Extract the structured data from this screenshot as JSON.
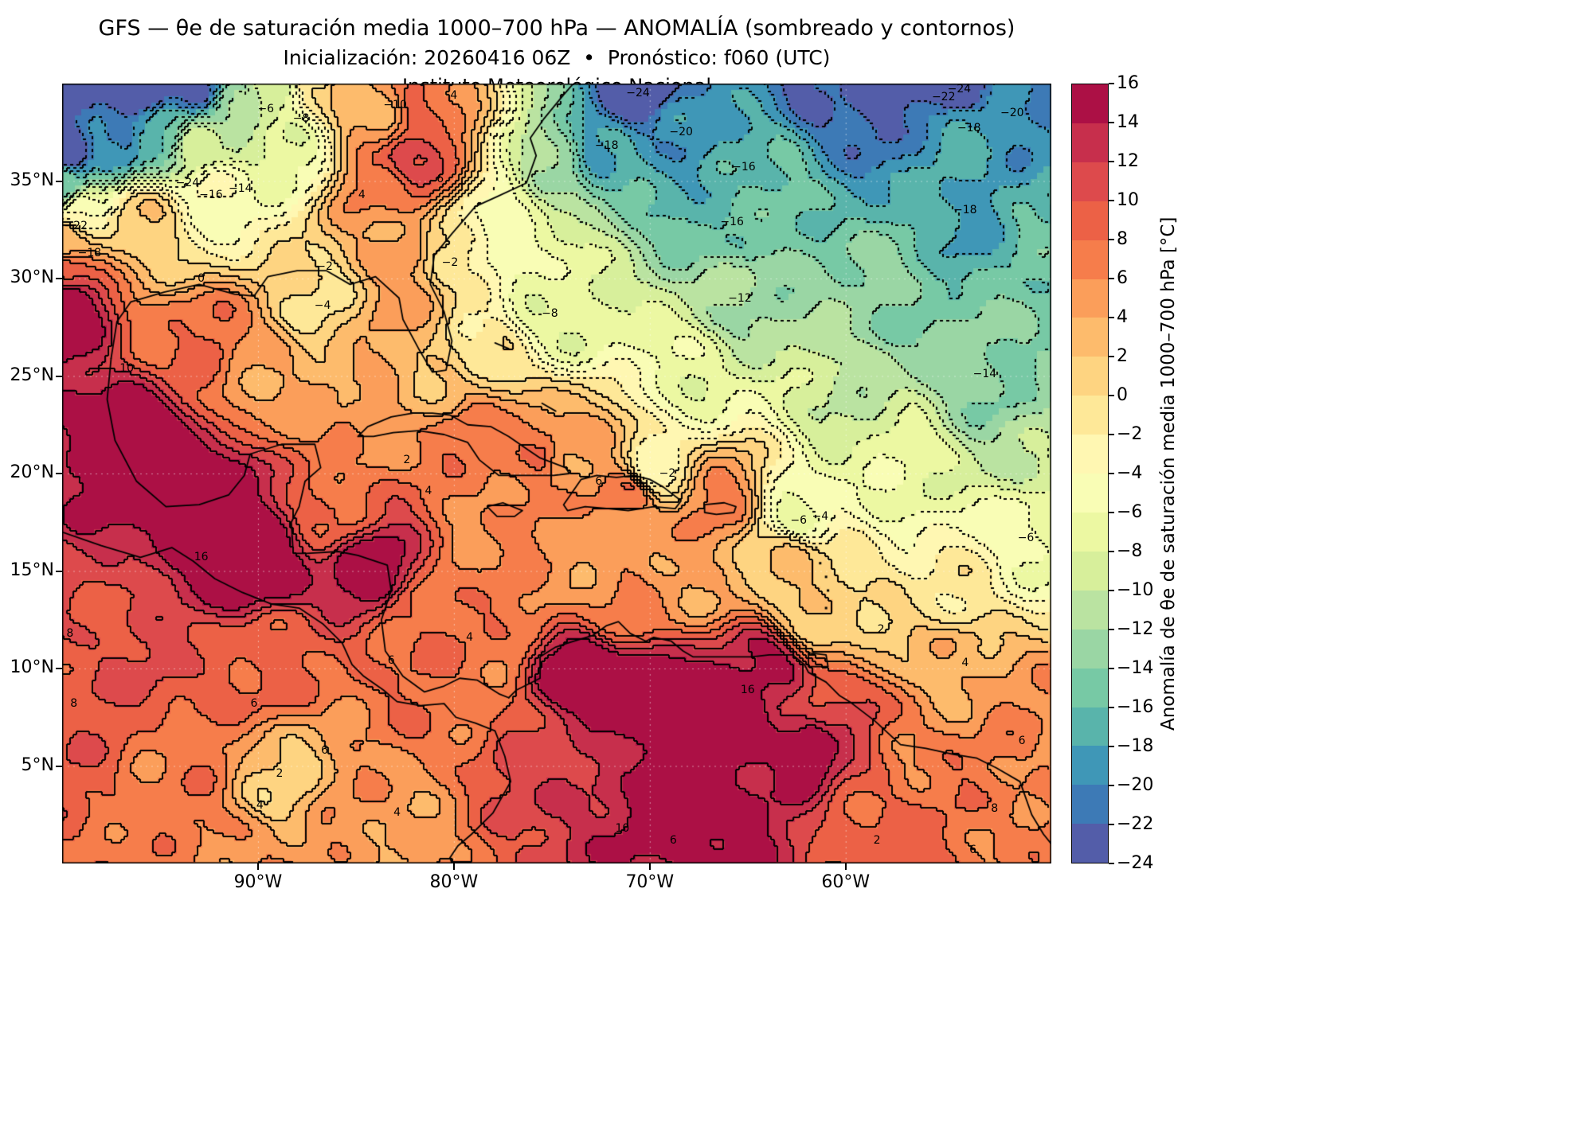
{
  "title": {
    "line1": "GFS — θe de saturación media 1000–700 hPa — ANOMALÍA (sombreado y contornos)",
    "line2": "Inicialización: 20260416 06Z  •  Pronóstico: f060 (UTC)",
    "line3": "Instituto Meteorológico Nacional"
  },
  "axes": {
    "lat_tick_labels": [
      "35°N",
      "30°N",
      "25°N",
      "20°N",
      "15°N",
      "10°N",
      "5°N"
    ],
    "lat_tick_values": [
      35,
      30,
      25,
      20,
      15,
      10,
      5
    ],
    "lon_tick_labels": [
      "90°W",
      "80°W",
      "70°W",
      "60°W"
    ],
    "lon_tick_values": [
      -90,
      -80,
      -70,
      -60
    ]
  },
  "colorbar": {
    "label": "Anomalía de θe de saturación media 1000–700 hPa [°C]",
    "tick_labels": [
      "16",
      "14",
      "12",
      "10",
      "8",
      "6",
      "4",
      "2",
      "0",
      "−2",
      "−4",
      "−6",
      "−8",
      "−10",
      "−12",
      "−14",
      "−16",
      "−18",
      "−20",
      "−22",
      "−24"
    ],
    "tick_values": [
      16,
      14,
      12,
      10,
      8,
      6,
      4,
      2,
      0,
      -2,
      -4,
      -6,
      -8,
      -10,
      -12,
      -14,
      -16,
      -18,
      -20,
      -22,
      -24
    ],
    "colors": [
      "#535da9",
      "#3d7ab6",
      "#3f97b7",
      "#59b4ab",
      "#77c9a5",
      "#9ad6a4",
      "#bae3a1",
      "#d7ef9b",
      "#ecf8a2",
      "#f9fdb5",
      "#fff7b2",
      "#fee898",
      "#fed481",
      "#fdbb6c",
      "#fb9e5a",
      "#f67d4b",
      "#ec6146",
      "#dd4a4c",
      "#c72f4c",
      "#ac1045"
    ]
  },
  "chart_data": {
    "type": "heatmap",
    "variable": "Anomalía de θe de saturación media 1000–700 hPa",
    "units": "°C",
    "model": "GFS",
    "init": "20260416 06Z",
    "forecast_hour": "f060 (UTC)",
    "level_min": -24,
    "level_max": 16,
    "contour_interval": 2,
    "negative_contour_style": "dotted",
    "positive_contour_style": "solid",
    "extent": {
      "lon_min": -100,
      "lon_max": -49.5,
      "lat_min": 0,
      "lat_max": 40
    },
    "field_control_points": [
      {
        "lon": -100,
        "lat": 40,
        "val": -27
      },
      {
        "lon": -96,
        "lat": 40,
        "val": -26
      },
      {
        "lon": -100,
        "lat": 36.5,
        "val": -25
      },
      {
        "lon": -93,
        "lat": 40,
        "val": -22
      },
      {
        "lon": -97.5,
        "lat": 37,
        "val": -20
      },
      {
        "lon": -95,
        "lat": 37.5,
        "val": -16
      },
      {
        "lon": -100,
        "lat": 34.8,
        "val": -15
      },
      {
        "lon": -91,
        "lat": 39,
        "val": -13
      },
      {
        "lon": -93,
        "lat": 36.7,
        "val": -10
      },
      {
        "lon": -89,
        "lat": 40,
        "val": -8
      },
      {
        "lon": -88.5,
        "lat": 36.5,
        "val": -7
      },
      {
        "lon": -92,
        "lat": 34.5,
        "val": -4
      },
      {
        "lon": -99,
        "lat": 33.5,
        "val": -4
      },
      {
        "lon": -87,
        "lat": 40,
        "val": 0
      },
      {
        "lon": -96,
        "lat": 33,
        "val": 1
      },
      {
        "lon": -85.5,
        "lat": 40,
        "val": 4
      },
      {
        "lon": -100,
        "lat": 32,
        "val": 4
      },
      {
        "lon": -84,
        "lat": 38.5,
        "val": 3
      },
      {
        "lon": -100,
        "lat": 30.5,
        "val": 10
      },
      {
        "lon": -100,
        "lat": 28.5,
        "val": 16
      },
      {
        "lon": -82,
        "lat": 36,
        "val": 12
      },
      {
        "lon": -81.5,
        "lat": 38.5,
        "val": 8
      },
      {
        "lon": -83.5,
        "lat": 34.5,
        "val": 7
      },
      {
        "lon": -83,
        "lat": 31.5,
        "val": 5
      },
      {
        "lon": -82.5,
        "lat": 28.8,
        "val": 4
      },
      {
        "lon": -80,
        "lat": 31.5,
        "val": -2
      },
      {
        "lon": -77.5,
        "lat": 33.5,
        "val": -5
      },
      {
        "lon": -75,
        "lat": 28.2,
        "val": -8
      },
      {
        "lon": -78.5,
        "lat": 26,
        "val": -1
      },
      {
        "lon": -75,
        "lat": 36,
        "val": -12
      },
      {
        "lon": -72.3,
        "lat": 36.8,
        "val": -18
      },
      {
        "lon": -70.6,
        "lat": 39.5,
        "val": -24
      },
      {
        "lon": -68.4,
        "lat": 37.6,
        "val": -20
      },
      {
        "lon": -65.2,
        "lat": 35.7,
        "val": -16
      },
      {
        "lon": -60,
        "lat": 39.5,
        "val": -23
      },
      {
        "lon": -54,
        "lat": 39.7,
        "val": -24
      },
      {
        "lon": -51.5,
        "lat": 38.5,
        "val": -20
      },
      {
        "lon": -53.8,
        "lat": 37.7,
        "val": -18
      },
      {
        "lon": -65.8,
        "lat": 32.9,
        "val": -16
      },
      {
        "lon": -53.9,
        "lat": 33.5,
        "val": -18
      },
      {
        "lon": -50,
        "lat": 33,
        "val": -16
      },
      {
        "lon": -65.4,
        "lat": 29,
        "val": -12
      },
      {
        "lon": -58,
        "lat": 29,
        "val": -14
      },
      {
        "lon": -52.9,
        "lat": 25.1,
        "val": -14
      },
      {
        "lon": -50,
        "lat": 21,
        "val": -11
      },
      {
        "lon": -60,
        "lat": 24,
        "val": -10
      },
      {
        "lon": -68,
        "lat": 25,
        "val": -7
      },
      {
        "lon": -70,
        "lat": 20,
        "val": -2.5
      },
      {
        "lon": -62.4,
        "lat": 17.6,
        "val": -6
      },
      {
        "lon": -57.5,
        "lat": 20,
        "val": -7
      },
      {
        "lon": -50,
        "lat": 17,
        "val": -6
      },
      {
        "lon": -55,
        "lat": 14,
        "val": -2
      },
      {
        "lon": -58,
        "lat": 12,
        "val": 1
      },
      {
        "lon": -54,
        "lat": 10,
        "val": 4
      },
      {
        "lon": -51,
        "lat": 6.5,
        "val": 6
      },
      {
        "lon": -50,
        "lat": 2.5,
        "val": 7
      },
      {
        "lon": -80.5,
        "lat": 24,
        "val": 3
      },
      {
        "lon": -79.5,
        "lat": 22,
        "val": 7
      },
      {
        "lon": -76,
        "lat": 21,
        "val": 8
      },
      {
        "lon": -74,
        "lat": 20.5,
        "val": 4
      },
      {
        "lon": -71,
        "lat": 19,
        "val": 8
      },
      {
        "lon": -66.5,
        "lat": 18.3,
        "val": 6
      },
      {
        "lon": -63,
        "lat": 16,
        "val": 2
      },
      {
        "lon": -62,
        "lat": 13,
        "val": 1
      },
      {
        "lon": -84.5,
        "lat": 22.5,
        "val": 6
      },
      {
        "lon": -86,
        "lat": 18.5,
        "val": 8
      },
      {
        "lon": -97,
        "lat": 22,
        "val": 16
      },
      {
        "lon": -93,
        "lat": 19,
        "val": 17
      },
      {
        "lon": -90,
        "lat": 15.5,
        "val": 17
      },
      {
        "lon": -84,
        "lat": 15,
        "val": 15
      },
      {
        "lon": -82,
        "lat": 12.5,
        "val": 8
      },
      {
        "lon": -79,
        "lat": 9,
        "val": 7
      },
      {
        "lon": -88.5,
        "lat": 10.5,
        "val": 8
      },
      {
        "lon": -94,
        "lat": 10,
        "val": 10
      },
      {
        "lon": -98.5,
        "lat": 11,
        "val": 10
      },
      {
        "lon": -99.5,
        "lat": 6,
        "val": 9
      },
      {
        "lon": -94,
        "lat": 5,
        "val": 7
      },
      {
        "lon": -88.9,
        "lat": 4,
        "val": 1.5
      },
      {
        "lon": -85,
        "lat": 3,
        "val": 5
      },
      {
        "lon": -83,
        "lat": 1,
        "val": 5
      },
      {
        "lon": -91,
        "lat": 1,
        "val": 6
      },
      {
        "lon": -74,
        "lat": 10,
        "val": 16
      },
      {
        "lon": -70,
        "lat": 8.5,
        "val": 17
      },
      {
        "lon": -66,
        "lat": 7.5,
        "val": 17
      },
      {
        "lon": -62,
        "lat": 6,
        "val": 15
      },
      {
        "lon": -68,
        "lat": 3,
        "val": 16
      },
      {
        "lon": -73,
        "lat": 4,
        "val": 13
      },
      {
        "lon": -64,
        "lat": 10,
        "val": 14
      },
      {
        "lon": -60.5,
        "lat": 8,
        "val": 10
      },
      {
        "lon": -76,
        "lat": 6.5,
        "val": 10
      },
      {
        "lon": -77.5,
        "lat": 12,
        "val": 7
      },
      {
        "lon": -72,
        "lat": 13.5,
        "val": 6
      },
      {
        "lon": -59,
        "lat": 3,
        "val": 9
      },
      {
        "lon": -56,
        "lat": 5,
        "val": 7
      },
      {
        "lon": -78,
        "lat": 15.5,
        "val": 6
      },
      {
        "lon": -74,
        "lat": 15.5,
        "val": 5
      },
      {
        "lon": -68.5,
        "lat": 15,
        "val": 4
      },
      {
        "lon": -90,
        "lat": 25.5,
        "val": 5
      },
      {
        "lon": -86,
        "lat": 24.5,
        "val": 3
      },
      {
        "lon": -93,
        "lat": 27,
        "val": 8
      },
      {
        "lon": -87,
        "lat": 29,
        "val": 0
      }
    ],
    "contour_labels": [
      {
        "lon": -93.6,
        "lat": 34.9,
        "text": "−24"
      },
      {
        "lon": -99.3,
        "lat": 32.7,
        "text": "−22"
      },
      {
        "lon": -98.6,
        "lat": 31.3,
        "text": "−18"
      },
      {
        "lon": -92.4,
        "lat": 34.3,
        "text": "−16"
      },
      {
        "lon": -90.9,
        "lat": 34.6,
        "text": "−14"
      },
      {
        "lon": -89.6,
        "lat": 38.7,
        "text": "−6"
      },
      {
        "lon": -87.8,
        "lat": 38.2,
        "text": "−8"
      },
      {
        "lon": -83,
        "lat": 38.9,
        "text": "−10"
      },
      {
        "lon": -92.9,
        "lat": 30,
        "text": "0"
      },
      {
        "lon": -86.6,
        "lat": 30.6,
        "text": "−2"
      },
      {
        "lon": -86.7,
        "lat": 28.6,
        "text": "−4"
      },
      {
        "lon": -84.7,
        "lat": 34.3,
        "text": "4"
      },
      {
        "lon": -80.7,
        "lat": 35.1,
        "text": "6"
      },
      {
        "lon": -80,
        "lat": 39.4,
        "text": "4"
      },
      {
        "lon": -96.7,
        "lat": 25.4,
        "text": "10"
      },
      {
        "lon": -92.9,
        "lat": 15.7,
        "text": "16"
      },
      {
        "lon": -99.6,
        "lat": 11.8,
        "text": "8"
      },
      {
        "lon": -99.4,
        "lat": 8.2,
        "text": "8"
      },
      {
        "lon": -90.2,
        "lat": 8.2,
        "text": "6"
      },
      {
        "lon": -88.9,
        "lat": 4.6,
        "text": "2"
      },
      {
        "lon": -89.9,
        "lat": 3,
        "text": "4"
      },
      {
        "lon": -86.6,
        "lat": 5.8,
        "text": "6"
      },
      {
        "lon": -82.9,
        "lat": 2.6,
        "text": "4"
      },
      {
        "lon": -83.2,
        "lat": 10.4,
        "text": "6"
      },
      {
        "lon": -79.2,
        "lat": 11.6,
        "text": "4"
      },
      {
        "lon": -82.4,
        "lat": 20.7,
        "text": "2"
      },
      {
        "lon": -81.3,
        "lat": 19.1,
        "text": "4"
      },
      {
        "lon": -72.6,
        "lat": 19.6,
        "text": "6"
      },
      {
        "lon": -75.1,
        "lat": 28.2,
        "text": "−8"
      },
      {
        "lon": -80.2,
        "lat": 30.8,
        "text": "−2"
      },
      {
        "lon": -70.6,
        "lat": 39.5,
        "text": "−24"
      },
      {
        "lon": -72.2,
        "lat": 36.8,
        "text": "−18"
      },
      {
        "lon": -68.4,
        "lat": 37.5,
        "text": "−20"
      },
      {
        "lon": -65.2,
        "lat": 35.7,
        "text": "−16"
      },
      {
        "lon": -65.8,
        "lat": 32.9,
        "text": "−16"
      },
      {
        "lon": -55,
        "lat": 39.3,
        "text": "−22"
      },
      {
        "lon": -54.2,
        "lat": 39.7,
        "text": "−24"
      },
      {
        "lon": -51.5,
        "lat": 38.5,
        "text": "−20"
      },
      {
        "lon": -53.7,
        "lat": 37.7,
        "text": "−18"
      },
      {
        "lon": -53.9,
        "lat": 33.5,
        "text": "−18"
      },
      {
        "lon": -65.4,
        "lat": 29,
        "text": "−12"
      },
      {
        "lon": -52.9,
        "lat": 25.1,
        "text": "−14"
      },
      {
        "lon": -69.1,
        "lat": 20,
        "text": "−2"
      },
      {
        "lon": -62.4,
        "lat": 17.6,
        "text": "−6"
      },
      {
        "lon": -61.3,
        "lat": 17.8,
        "text": "−4"
      },
      {
        "lon": -50.8,
        "lat": 16.7,
        "text": "−6"
      },
      {
        "lon": -58.2,
        "lat": 12,
        "text": "2"
      },
      {
        "lon": -53.9,
        "lat": 10.3,
        "text": "4"
      },
      {
        "lon": -51,
        "lat": 6.3,
        "text": "6"
      },
      {
        "lon": -65,
        "lat": 8.9,
        "text": "16"
      },
      {
        "lon": -71.4,
        "lat": 1.8,
        "text": "10"
      },
      {
        "lon": -68.8,
        "lat": 1.2,
        "text": "6"
      },
      {
        "lon": -58.4,
        "lat": 1.2,
        "text": "2"
      },
      {
        "lon": -52.4,
        "lat": 2.8,
        "text": "8"
      },
      {
        "lon": -53.5,
        "lat": 0.7,
        "text": "6"
      }
    ]
  }
}
